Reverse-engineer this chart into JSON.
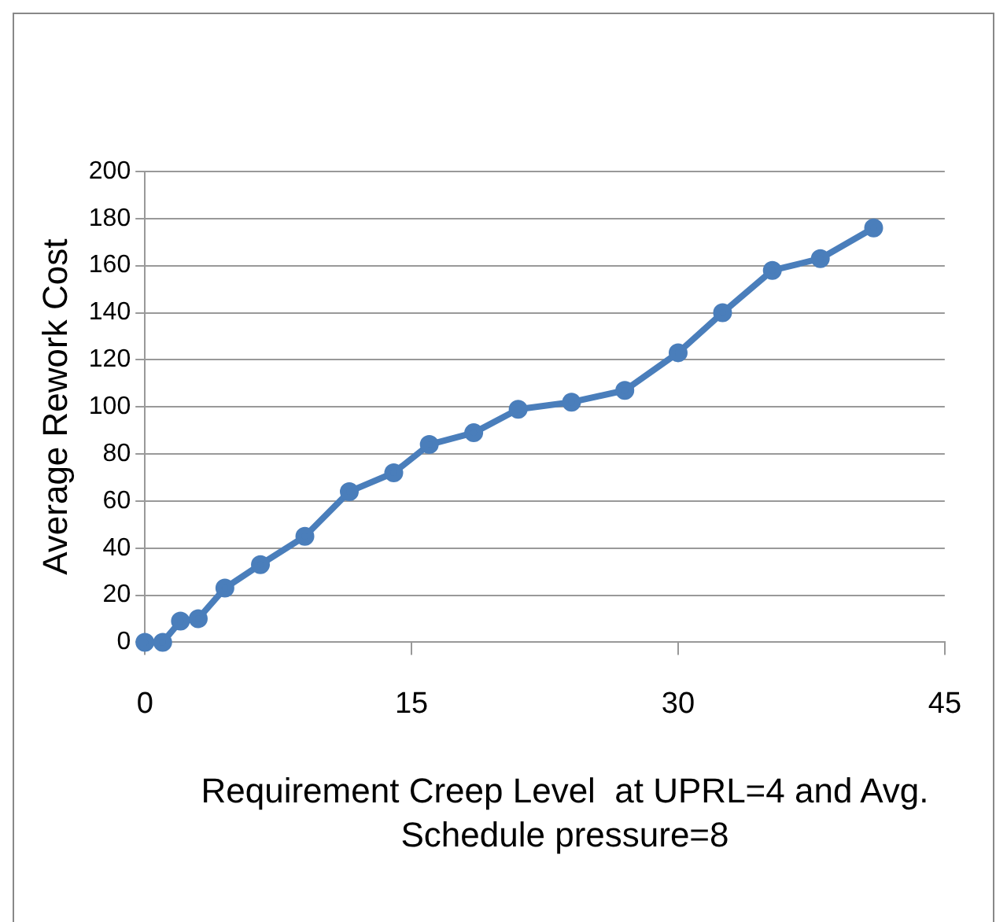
{
  "chart_data": {
    "type": "line",
    "xlabel": "Requirement Creep Level  at UPRL=4 and Avg. Schedule pressure=8",
    "ylabel": "Average Rework Cost",
    "x": [
      0,
      1,
      2,
      3,
      4.5,
      6.5,
      9,
      11.5,
      14,
      16,
      18.5,
      21,
      24,
      27,
      30,
      32.5,
      35.3,
      38,
      41
    ],
    "series": [
      {
        "color": "#4a7ebb",
        "values": [
          0,
          0,
          9,
          10,
          23,
          33,
          45,
          64,
          72,
          84,
          89,
          99,
          102,
          107,
          123,
          140,
          158,
          163,
          176
        ]
      }
    ],
    "xlim": [
      0,
      45
    ],
    "xticks": [
      0,
      15,
      30,
      45
    ],
    "ylim": [
      0,
      200
    ],
    "yticks": [
      0,
      20,
      40,
      60,
      80,
      100,
      120,
      140,
      160,
      180,
      200
    ],
    "grid": "y",
    "legend": false,
    "marker": "circle",
    "line_style": "solid"
  }
}
